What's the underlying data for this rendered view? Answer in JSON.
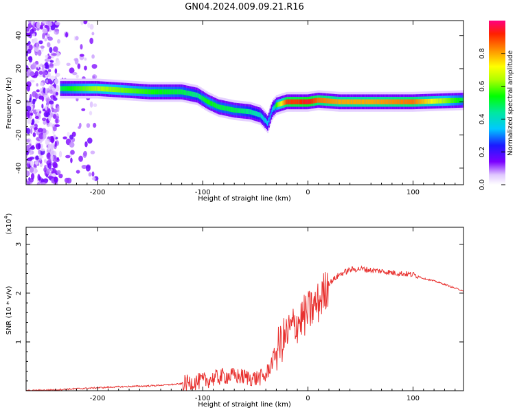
{
  "title": "GN04.2024.009.09.21.R16",
  "colors": {
    "snr_line": "#e8312f",
    "axis": "#000000"
  },
  "chart_data": [
    {
      "type": "heatmap",
      "xlabel": "Height of straight line (km)",
      "ylabel": "Frequency (Hz)",
      "xlim": [
        -268,
        148
      ],
      "ylim": [
        -50,
        49
      ],
      "x_ticks": [
        -200,
        -100,
        0,
        100
      ],
      "y_ticks": [
        40,
        20,
        0,
        -20,
        -40
      ],
      "colorbar": {
        "label": "Normalized spectral amplitude",
        "range": [
          0,
          1
        ],
        "ticks": [
          0.0,
          0.2,
          0.4,
          0.6,
          0.8
        ],
        "colormap": "rainbow"
      },
      "ridge": {
        "x": [
          -235,
          -200,
          -150,
          -120,
          -105,
          -95,
          -85,
          -70,
          -55,
          -45,
          -38,
          -34,
          -30,
          -20,
          -10,
          0,
          10,
          30,
          60,
          100,
          148
        ],
        "y": [
          8,
          8,
          6,
          6,
          4,
          0,
          -3,
          -5,
          -6,
          -8,
          -13,
          -5,
          -2,
          0,
          0,
          0,
          1,
          0,
          0,
          0,
          1
        ],
        "peak_amplitude": [
          0.5,
          0.65,
          0.55,
          0.5,
          0.45,
          0.55,
          0.5,
          0.5,
          0.45,
          0.4,
          0.35,
          0.3,
          0.55,
          0.9,
          0.9,
          0.95,
          0.85,
          0.8,
          0.8,
          0.85,
          0.5
        ]
      },
      "scatter_region": {
        "x_range": [
          -268,
          -200
        ],
        "y_range": [
          -50,
          49
        ],
        "amplitude": 0.1
      }
    },
    {
      "type": "line",
      "xlabel": "Height of straight line (km)",
      "ylabel": "SNR (10 * v/v)",
      "yscale_label": "(x10",
      "yscale_exp": "4",
      "xlim": [
        -268,
        148
      ],
      "ylim": [
        0,
        3.35
      ],
      "x_ticks": [
        -200,
        -100,
        0,
        100
      ],
      "y_ticks": [
        1,
        2,
        3
      ],
      "series": [
        {
          "x": [
            -268,
            -240,
            -210,
            -180,
            -150,
            -120,
            -100,
            -90,
            -80,
            -70,
            -60,
            -50,
            -40,
            -35,
            -30,
            -25,
            -20,
            -15,
            -10,
            -5,
            0,
            5,
            10,
            15,
            20,
            30,
            40,
            50,
            60,
            70,
            80,
            90,
            100,
            105,
            110,
            120,
            130,
            140,
            148
          ],
          "y": [
            0.0,
            0.02,
            0.05,
            0.08,
            0.1,
            0.14,
            0.2,
            0.25,
            0.3,
            0.3,
            0.28,
            0.25,
            0.3,
            0.55,
            0.8,
            1.0,
            1.15,
            1.3,
            1.4,
            1.5,
            1.6,
            1.7,
            1.8,
            2.0,
            2.2,
            2.38,
            2.48,
            2.5,
            2.47,
            2.45,
            2.42,
            2.4,
            2.38,
            2.35,
            2.3,
            2.25,
            2.18,
            2.1,
            2.05
          ]
        }
      ]
    }
  ]
}
